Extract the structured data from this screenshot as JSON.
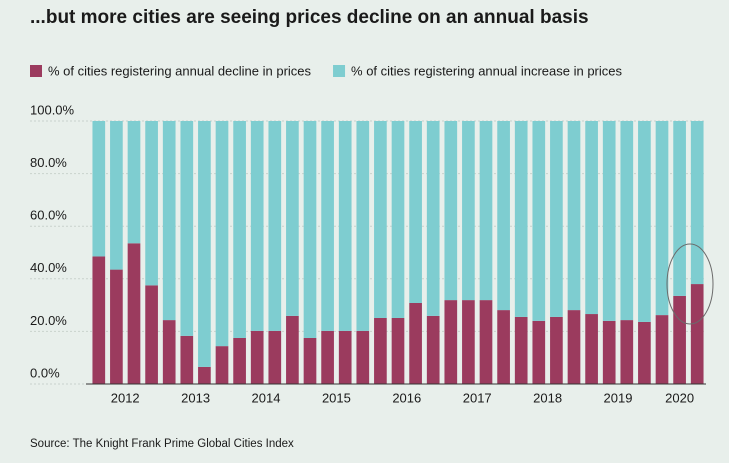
{
  "chart_data": {
    "type": "stacked_bar",
    "title": "...but more cities are seeing prices decline on an annual basis",
    "source": "Source: The Knight Frank Prime Global Cities Index",
    "categories": [
      "2012",
      null,
      null,
      null,
      "2013",
      null,
      null,
      null,
      "2014",
      null,
      null,
      null,
      "2015",
      null,
      null,
      null,
      "2016",
      null,
      null,
      null,
      "2017",
      null,
      null,
      null,
      "2018",
      null,
      null,
      null,
      "2019",
      null,
      null,
      null,
      "2020",
      null,
      null
    ],
    "series": [
      {
        "name": "% of cities registering annual decline in prices",
        "color": "#9b3b5e",
        "values": [
          48.5,
          43.5,
          53.5,
          37.5,
          24.3,
          18.3,
          6.5,
          14.4,
          17.5,
          20.2,
          20.2,
          25.9,
          17.5,
          20.2,
          20.2,
          20.2,
          25.1,
          25.1,
          30.8,
          25.9,
          31.9,
          31.9,
          31.9,
          28.1,
          25.5,
          24.0,
          25.5,
          28.1,
          26.6,
          24.0,
          24.3,
          23.6,
          26.2,
          33.5,
          38.0
        ]
      },
      {
        "name": "% of cities registering annual increase in prices",
        "color": "#7ecdd0",
        "values": [
          51.5,
          56.5,
          46.5,
          62.5,
          75.7,
          81.7,
          93.5,
          85.6,
          82.5,
          79.8,
          79.8,
          74.1,
          82.5,
          79.8,
          79.8,
          79.8,
          74.9,
          74.9,
          69.2,
          74.1,
          68.1,
          68.1,
          68.1,
          71.9,
          74.5,
          76.0,
          74.5,
          71.9,
          73.4,
          76.0,
          75.7,
          76.4,
          73.8,
          66.5,
          62.0
        ]
      }
    ],
    "ylim": [
      0,
      100
    ],
    "yticks": [
      {
        "value": 0,
        "label": "0.0%"
      },
      {
        "value": 20,
        "label": "20.0%"
      },
      {
        "value": 40,
        "label": "40.0%"
      },
      {
        "value": 60,
        "label": "60.0%"
      },
      {
        "value": 80,
        "label": "80.0%"
      },
      {
        "value": 100,
        "label": "100.0%"
      }
    ],
    "grid": true
  }
}
